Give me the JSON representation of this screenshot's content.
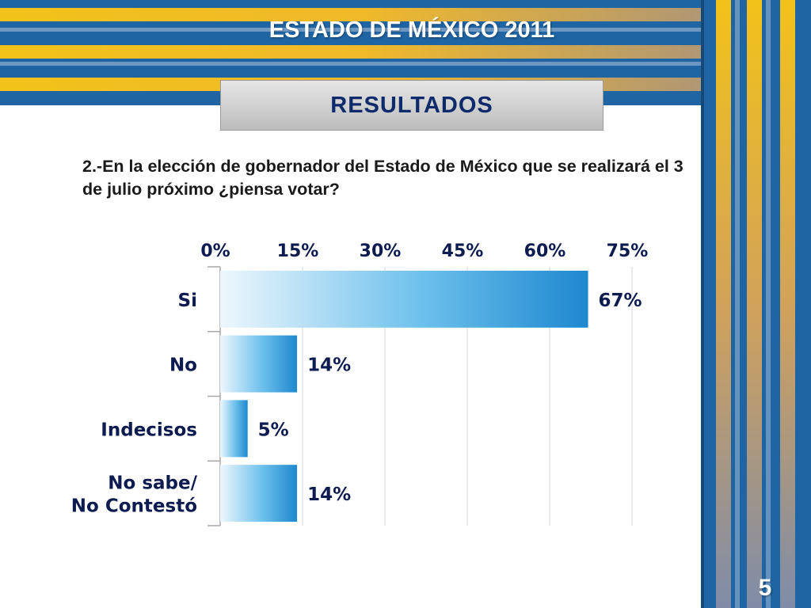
{
  "header": {
    "title": "ESTADO DE MÉXICO 2011"
  },
  "section": {
    "label": "RESULTADOS"
  },
  "question": {
    "text": "2.-En la elección de gobernador del Estado de México que se realizará el 3 de julio próximo ¿piensa votar?"
  },
  "page": {
    "number": "5"
  },
  "colors": {
    "stripe_blue": "#1f64a3",
    "stripe_gold": "#f2c21a",
    "bar_blue": "#1e88cf",
    "label_navy": "#0d1b50"
  },
  "chart_data": {
    "type": "bar",
    "orientation": "horizontal",
    "categories": [
      "Si",
      "No",
      "Indecisos",
      "No sabe/ No Contestó"
    ],
    "category_lines": [
      [
        "Si"
      ],
      [
        "No"
      ],
      [
        "Indecisos"
      ],
      [
        "No sabe/",
        "No Contestó"
      ]
    ],
    "values": [
      67,
      14,
      5,
      14
    ],
    "value_labels": [
      "67%",
      "14%",
      "5%",
      "14%"
    ],
    "xlim": [
      0,
      75
    ],
    "xticks": [
      0,
      15,
      30,
      45,
      60,
      75
    ],
    "xtick_labels": [
      "0%",
      "15%",
      "30%",
      "45%",
      "60%",
      "75%"
    ],
    "x_axis_position": "top",
    "grid": true,
    "legend": "none"
  }
}
